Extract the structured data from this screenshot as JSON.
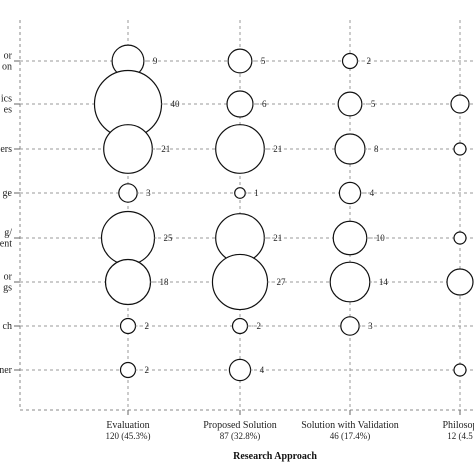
{
  "chart_data": {
    "type": "bubble",
    "xlabel": "Research Approach",
    "row_labels": [
      "or\non",
      "ics\nes",
      "ers",
      "ge",
      "g/\nent",
      "or\ngs",
      "ch",
      "ner"
    ],
    "columns": [
      {
        "label": "Evaluation",
        "sublabel": "120 (45.3%)"
      },
      {
        "label": "Proposed Solution",
        "sublabel": "87 (32.8%)"
      },
      {
        "label": "Solution with Validation",
        "sublabel": "46 (17.4%)"
      },
      {
        "label": "Philosop",
        "sublabel": "12 (4.5"
      }
    ],
    "values": [
      [
        9,
        5,
        2,
        null
      ],
      [
        40,
        6,
        5,
        null
      ],
      [
        21,
        21,
        8,
        null
      ],
      [
        3,
        1,
        4,
        null
      ],
      [
        25,
        21,
        10,
        null
      ],
      [
        18,
        27,
        14,
        null
      ],
      [
        2,
        2,
        3,
        null
      ],
      [
        2,
        4,
        null,
        null
      ]
    ],
    "partial_bubbles": [
      [
        1,
        3
      ],
      [
        2,
        3
      ],
      [
        4,
        3
      ],
      [
        5,
        3
      ],
      [
        7,
        3
      ]
    ],
    "grid": true
  }
}
